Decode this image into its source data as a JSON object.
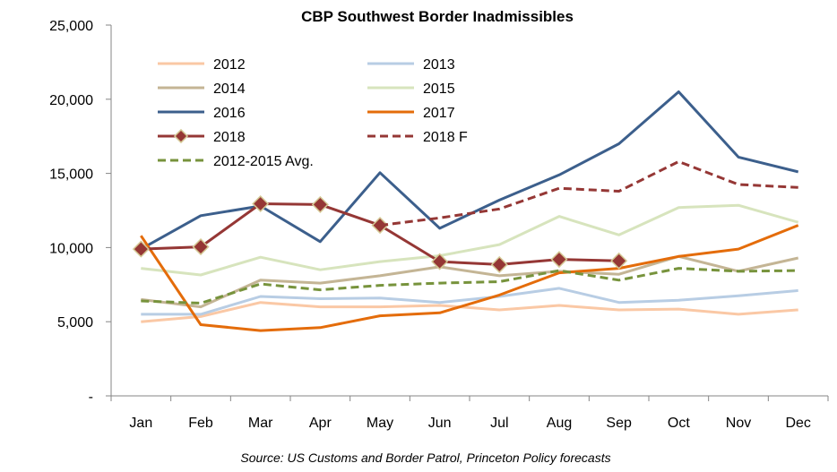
{
  "chart_data": {
    "type": "line",
    "title": "CBP Southwest Border Inadmissibles",
    "source": "Source: US Customs and Border Patrol, Princeton Policy forecasts",
    "categories": [
      "Jan",
      "Feb",
      "Mar",
      "Apr",
      "May",
      "Jun",
      "Jul",
      "Aug",
      "Sep",
      "Oct",
      "Nov",
      "Dec"
    ],
    "ylim": [
      0,
      25000
    ],
    "yticks": [
      {
        "value": 0,
        "label": "-"
      },
      {
        "value": 5000,
        "label": "5,000"
      },
      {
        "value": 10000,
        "label": "10,000"
      },
      {
        "value": 15000,
        "label": "15,000"
      },
      {
        "value": 20000,
        "label": "20,000"
      },
      {
        "value": 25000,
        "label": "25,000"
      }
    ],
    "grid": false,
    "legend_position": "top-left",
    "series": [
      {
        "name": "2012",
        "color": "#fac8a5",
        "dash": false,
        "marker": false,
        "values": [
          5000,
          5350,
          6300,
          6000,
          6000,
          6100,
          5800,
          6100,
          5800,
          5850,
          5500,
          5800
        ]
      },
      {
        "name": "2013",
        "color": "#b8cde4",
        "dash": false,
        "marker": false,
        "values": [
          5500,
          5500,
          6700,
          6550,
          6600,
          6300,
          6700,
          7250,
          6300,
          6450,
          6750,
          7100
        ]
      },
      {
        "name": "2014",
        "color": "#c4b595",
        "dash": false,
        "marker": false,
        "values": [
          6500,
          6000,
          7800,
          7600,
          8100,
          8700,
          8100,
          8400,
          8200,
          9400,
          8400,
          9300
        ]
      },
      {
        "name": "2015",
        "color": "#d7e4bd",
        "dash": false,
        "marker": false,
        "values": [
          8600,
          8150,
          9350,
          8500,
          9050,
          9450,
          10200,
          12100,
          10850,
          12700,
          12850,
          11700
        ]
      },
      {
        "name": "2016",
        "color": "#3c5f8c",
        "dash": false,
        "marker": false,
        "values": [
          9900,
          12150,
          12800,
          10400,
          15050,
          11300,
          13200,
          14900,
          17000,
          20500,
          16100,
          15100
        ]
      },
      {
        "name": "2017",
        "color": "#e46c0a",
        "dash": false,
        "marker": false,
        "values": [
          10800,
          4800,
          4400,
          4600,
          5400,
          5600,
          6800,
          8300,
          8600,
          9400,
          9900,
          11500
        ]
      },
      {
        "name": "2018",
        "color": "#953735",
        "dash": false,
        "marker": true,
        "values": [
          9900,
          10050,
          12950,
          12900,
          11500,
          9050,
          8850,
          9200,
          9100,
          null,
          null,
          null
        ]
      },
      {
        "name": "2018 F",
        "color": "#953735",
        "dash": true,
        "marker": false,
        "values": [
          null,
          null,
          null,
          null,
          11500,
          12000,
          12600,
          14000,
          13800,
          15800,
          14250,
          14050
        ]
      },
      {
        "name": "2012-2015 Avg.",
        "color": "#77933c",
        "dash": true,
        "marker": false,
        "values": [
          6400,
          6250,
          7550,
          7150,
          7450,
          7600,
          7700,
          8450,
          7800,
          8600,
          8400,
          8450
        ]
      }
    ]
  }
}
